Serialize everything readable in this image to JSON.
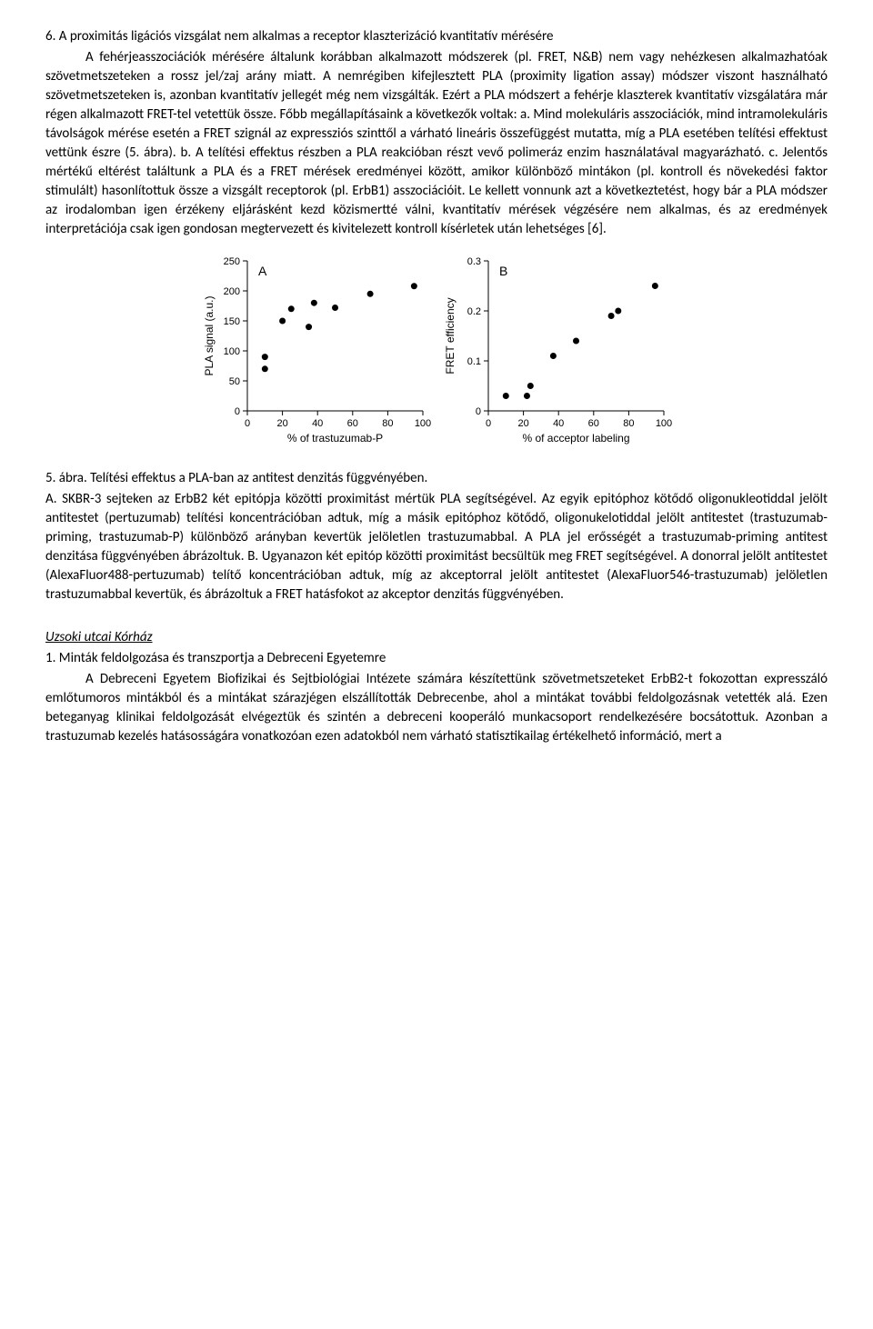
{
  "heading6": "6. A proximitás ligációs vizsgálat nem alkalmas a receptor klaszterizáció kvantitatív mérésére",
  "heading6_sub": "A fehérjeasszociációk mérésére általunk korábban alkalmazott módszerek (pl. FRET, N&B) nem vagy nehézkesen alkalmazhatóak szövetmetszeteken a rossz jel/zaj arány miatt. A nemrégiben kifejlesztett PLA (proximity ligation assay) módszer viszont használható szövetmetszeteken is, azonban kvantitatív jellegét még nem vizsgálták. Ezért a PLA módszert a fehérje klaszterek kvantitatív vizsgálatára már régen alkalmazott FRET-tel vetettük össze. Főbb megállapításaink a következők voltak: a. Mind molekuláris asszociációk, mind intramolekuláris távolságok mérése esetén a FRET szignál az expressziós szinttől a várható lineáris összefüggést mutatta, míg a PLA esetében telítési effektust vettünk észre (5. ábra). b. A telítési effektus részben a PLA reakcióban részt vevő polimeráz enzim használatával magyarázható. c. Jelentős mértékű eltérést találtunk a PLA és a FRET mérések eredményei között, amikor különböző mintákon (pl. kontroll és növekedési faktor stimulált) hasonlítottuk össze a vizsgált receptorok (pl. ErbB1) asszociációit. Le kellett vonnunk azt a következtetést, hogy bár a PLA módszer az irodalomban igen érzékeny eljárásként kezd közismertté válni, kvantitatív mérések végzésére nem alkalmas, és az eredmények interpretációja csak igen gondosan megtervezett és kivitelezett kontroll kísérletek után lehetséges [6].",
  "chartA": {
    "type": "scatter",
    "panel_label": "A",
    "ylabel": "PLA signal (a.u.)",
    "xlabel": "% of trastuzumab-P",
    "xlim": [
      0,
      100
    ],
    "xtick_step": 20,
    "ylim": [
      0,
      250
    ],
    "ytick_step": 50,
    "points": [
      {
        "x": 10,
        "y": 70
      },
      {
        "x": 10,
        "y": 90
      },
      {
        "x": 20,
        "y": 150
      },
      {
        "x": 25,
        "y": 170
      },
      {
        "x": 35,
        "y": 140
      },
      {
        "x": 38,
        "y": 180
      },
      {
        "x": 50,
        "y": 172
      },
      {
        "x": 70,
        "y": 195
      },
      {
        "x": 95,
        "y": 208
      }
    ],
    "point_color": "#000000",
    "point_radius": 3.5,
    "background": "#ffffff",
    "axis_color": "#000000",
    "label_fontsize": 11,
    "title_fontsize": 12
  },
  "chartB": {
    "type": "scatter",
    "panel_label": "B",
    "ylabel": "FRET efficiency",
    "xlabel": "% of acceptor labeling",
    "xlim": [
      0,
      100
    ],
    "xtick_step": 20,
    "ylim": [
      0,
      0.3
    ],
    "ytick_step": 0.1,
    "points": [
      {
        "x": 10,
        "y": 0.03
      },
      {
        "x": 22,
        "y": 0.03
      },
      {
        "x": 24,
        "y": 0.05
      },
      {
        "x": 37,
        "y": 0.11
      },
      {
        "x": 50,
        "y": 0.14
      },
      {
        "x": 70,
        "y": 0.19
      },
      {
        "x": 74,
        "y": 0.2
      },
      {
        "x": 95,
        "y": 0.25
      }
    ],
    "point_color": "#000000",
    "point_radius": 3.5,
    "background": "#ffffff",
    "axis_color": "#000000",
    "label_fontsize": 11,
    "title_fontsize": 12
  },
  "fig_caption_title": "5. ábra. Telítési effektus a PLA-ban az antitest denzitás függvényében.",
  "fig_caption_body": "A. SKBR-3 sejteken az ErbB2 két epitópja közötti proximitást mértük PLA segítségével. Az egyik epitóphoz kötődő oligonukleotiddal jelölt antitestet (pertuzumab) telítési koncentrációban adtuk, míg a másik epitóphoz kötődő, oligonukelotiddal jelölt antitestet (trastuzumab-priming, trastuzumab-P) különböző arányban kevertük jelöletlen trastuzumabbal. A PLA jel erősségét a trastuzumab-priming antitest denzitása függvényében ábrázoltuk. B. Ugyanazon két epitóp közötti proximitást becsültük meg FRET segítségével. A donorral jelölt antitestet (AlexaFluor488-pertuzumab) telítő koncentrációban adtuk, míg az akceptorral jelölt antitestet (AlexaFluor546-trastuzumab) jelöletlen trastuzumabbal kevertük, és ábrázoltuk a FRET hatásfokot az akceptor denzitás függvényében.",
  "uzsoki_head": "Uzsoki utcai Kórház",
  "item1_head": "1. Minták feldolgozása és transzportja a Debreceni Egyetemre",
  "item1_body": "A Debreceni Egyetem Biofizikai és Sejtbiológiai Intézete számára készítettünk szövetmetszeteket ErbB2-t fokozottan expresszáló emlőtumoros mintákból és a mintákat szárazjégen elszállították Debrecenbe, ahol a mintákat további feldolgozásnak vetették alá. Ezen beteganyag klinikai feldolgozását elvégeztük és szintén a debreceni kooperáló munkacsoport rendelkezésére bocsátottuk. Azonban a trastuzumab kezelés hatásosságára vonatkozóan ezen adatokból nem várható statisztikailag értékelhető információ, mert a"
}
